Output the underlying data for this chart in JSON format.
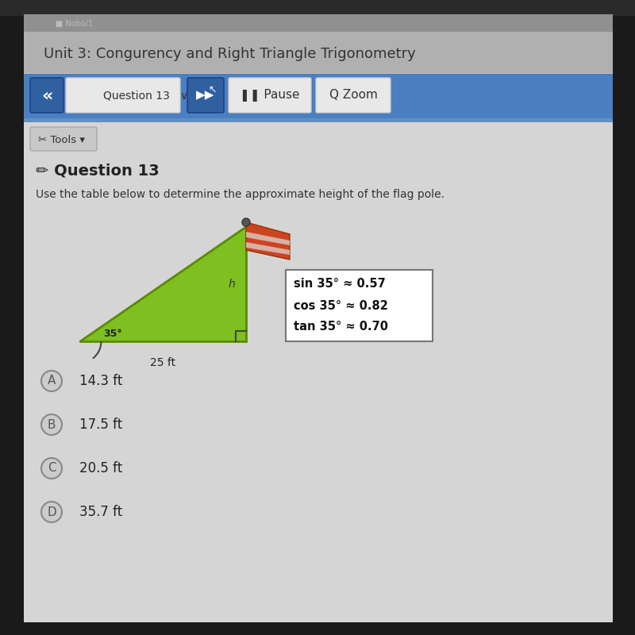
{
  "bg_dark": "#2a2a2a",
  "bg_medium": "#555555",
  "bg_light": "#888888",
  "header_area_bg": "#787878",
  "header_text": "Unit 3: Congurency and Right Triangle Trigonometry",
  "header_text_color": "#dddddd",
  "toolbar_bg": "#4a7fc1",
  "btn_dark_blue": "#3060a0",
  "btn_white_bg": "#e8e8e8",
  "content_bg": "#d8d8d8",
  "content_inner_bg": "#e0e0e0",
  "question_label": "Question 13",
  "question_text": "Use the table below to determine the approximate height of the flag pole.",
  "trig_table": [
    "sin 35° ≈ 0.57",
    "cos 35° ≈ 0.82",
    "tan 35° ≈ 0.70"
  ],
  "triangle_base_label": "25 ft",
  "triangle_h_label": "h",
  "triangle_angle_label": "35°",
  "triangle_fill": "#7dc020",
  "triangle_border": "#5a8a00",
  "flag_red": "#cc4422",
  "choices": [
    {
      "letter": "A",
      "text": "14.3 ft"
    },
    {
      "letter": "B",
      "text": "17.5 ft"
    },
    {
      "letter": "C",
      "text": "20.5 ft"
    },
    {
      "letter": "D",
      "text": "35.7 ft"
    }
  ],
  "white": "#ffffff",
  "separator_blue": "#6090c0"
}
